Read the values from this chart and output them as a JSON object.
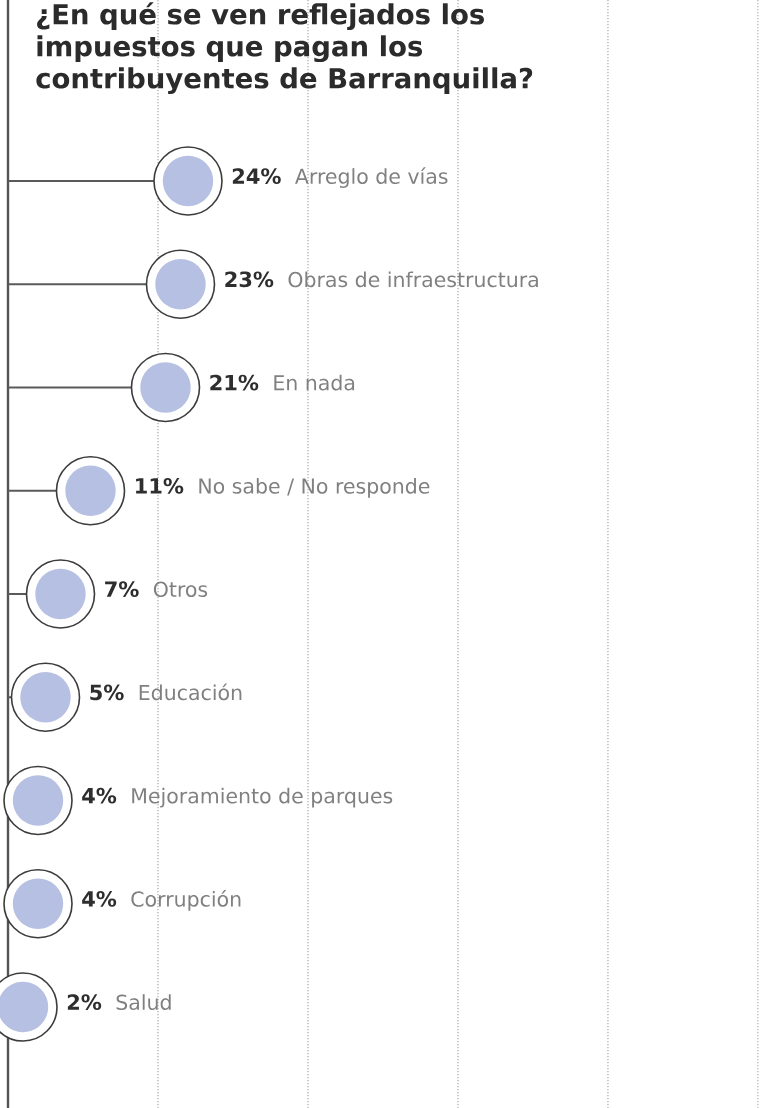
{
  "chart_data": {
    "type": "lollipop",
    "orientation": "horizontal",
    "title": "¿En qué se ven reflejados los impuestos que pagan los contribuyentes de Barranquilla?",
    "categories": [
      "Arreglo de vías",
      "Obras de infraestructura",
      "En nada",
      "No sabe / No responde",
      "Otros",
      "Educación",
      "Mejoramiento de parques",
      "Corrupción",
      "Salud"
    ],
    "values": [
      24,
      23,
      21,
      11,
      7,
      5,
      4,
      4,
      2
    ],
    "value_labels": [
      "24%",
      "23%",
      "21%",
      "11%",
      "7%",
      "5%",
      "4%",
      "4%",
      "2%"
    ],
    "color": "#b5c0e2",
    "marker": "circle",
    "xlim": [
      0,
      100
    ],
    "xticks": [
      {
        "value": 20,
        "label": null
      },
      {
        "value": 40,
        "label": null
      },
      {
        "value": 60,
        "label": null
      },
      {
        "value": 80,
        "label": null
      },
      {
        "value": 100,
        "label": null
      }
    ],
    "grid": "x"
  }
}
